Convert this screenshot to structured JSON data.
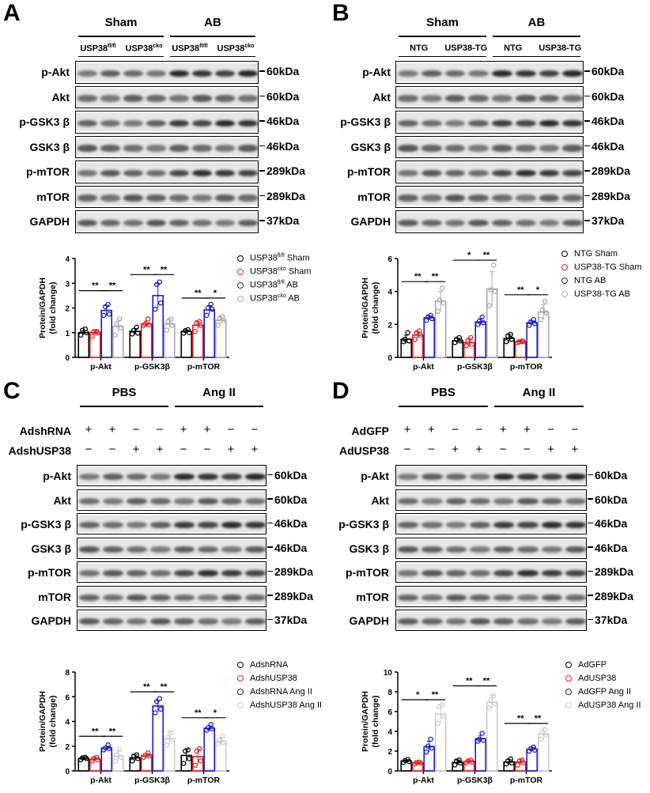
{
  "panels": [
    {
      "letter": "A",
      "groups": [
        "Sham",
        "AB"
      ],
      "lanes": [
        {
          "base": "USP38",
          "sup": "fl/fl"
        },
        {
          "base": "USP38",
          "sup": "cko"
        },
        {
          "base": "USP38",
          "sup": "fl/fl"
        },
        {
          "base": "USP38",
          "sup": "cko"
        }
      ],
      "rows": [
        "p-Akt",
        "Akt",
        "p-GSK3 β",
        "GSK3 β",
        "p-mTOR",
        "mTOR",
        "GAPDH"
      ],
      "kda": [
        "60kDa",
        "60kDa",
        "46kDa",
        "46kDa",
        "289kDa",
        "289kDa",
        "37kDa"
      ]
    },
    {
      "letter": "B",
      "groups": [
        "Sham",
        "AB"
      ],
      "lanes": [
        {
          "base": "NTG",
          "sup": ""
        },
        {
          "base": "USP38-TG",
          "sup": ""
        },
        {
          "base": "NTG",
          "sup": ""
        },
        {
          "base": "USP38-TG",
          "sup": ""
        }
      ],
      "rows": [
        "p-Akt",
        "Akt",
        "p-GSK3 β",
        "GSK3 β",
        "p-mTOR",
        "mTOR",
        "GAPDH"
      ],
      "kda": [
        "60kDa",
        "60kDa",
        "46kDa",
        "46kDa",
        "289kDa",
        "289kDa",
        "37kDa"
      ]
    },
    {
      "letter": "C",
      "groups": [
        "PBS",
        "Ang II"
      ],
      "treatments": [
        {
          "name": "AdshRNA",
          "signs": [
            "+",
            "+",
            "−",
            "−",
            "+",
            "+",
            "−",
            "−"
          ]
        },
        {
          "name": "AdshUSP38",
          "signs": [
            "−",
            "−",
            "+",
            "+",
            "−",
            "−",
            "+",
            "+"
          ]
        }
      ],
      "rows": [
        "p-Akt",
        "Akt",
        "p-GSK3 β",
        "GSK3 β",
        "p-mTOR",
        "mTOR",
        "GAPDH"
      ],
      "kda": [
        "60kDa",
        "60kDa",
        "46kDa",
        "46kDa",
        "289kDa",
        "289kDa",
        "37kDa"
      ]
    },
    {
      "letter": "D",
      "groups": [
        "PBS",
        "Ang II"
      ],
      "treatments": [
        {
          "name": "AdGFP",
          "signs": [
            "+",
            "+",
            "−",
            "−",
            "+",
            "+",
            "−",
            "−"
          ]
        },
        {
          "name": "AdUSP38",
          "signs": [
            "−",
            "−",
            "+",
            "+",
            "−",
            "−",
            "+",
            "+"
          ]
        }
      ],
      "rows": [
        "p-Akt",
        "Akt",
        "p-GSK3 β",
        "GSK3 β",
        "p-mTOR",
        "mTOR",
        "GAPDH"
      ],
      "kda": [
        "60kDa",
        "60kDa",
        "46kDa",
        "46kDa",
        "289kDa",
        "289kDa",
        "37kDa"
      ]
    }
  ],
  "chart_data": [
    {
      "type": "bar",
      "panel": "A",
      "ylabel": [
        "Protein/GAPDH",
        "(fold change)"
      ],
      "ylim": [
        0,
        4
      ],
      "yticks": [
        0,
        1,
        2,
        3,
        4
      ],
      "categories": [
        "p-Akt",
        "p-GSK3β",
        "p-mTOR"
      ],
      "series": [
        {
          "legend": {
            "base": "USP38",
            "sup": "fl/fl",
            "rest": " Sham"
          },
          "color": "#000000",
          "values": [
            1.0,
            1.05,
            1.05
          ],
          "sd": [
            0.08,
            0.12,
            0.06
          ],
          "points": [
            [
              0.9,
              1.0,
              1.1,
              1.15
            ],
            [
              0.95,
              0.98,
              1.1,
              1.22
            ],
            [
              0.98,
              1.0,
              1.08,
              1.12
            ]
          ]
        },
        {
          "legend": {
            "base": "USP38",
            "sup": "cko",
            "rest": " Sham"
          },
          "color": "#e02020",
          "values": [
            1.0,
            1.35,
            1.3
          ],
          "sd": [
            0.08,
            0.12,
            0.15
          ],
          "points": [
            [
              0.85,
              1.0,
              1.05,
              1.05
            ],
            [
              1.3,
              1.32,
              1.35,
              1.55
            ],
            [
              1.05,
              1.3,
              1.4,
              1.45
            ]
          ]
        },
        {
          "legend": {
            "base": "USP38",
            "sup": "fl/fl",
            "rest": " AB"
          },
          "color": "#1a1acc",
          "values": [
            1.9,
            2.5,
            1.92
          ],
          "sd": [
            0.2,
            0.5,
            0.18
          ],
          "points": [
            [
              1.7,
              1.75,
              2.05,
              2.15
            ],
            [
              1.95,
              2.2,
              2.95,
              3.05
            ],
            [
              1.7,
              1.95,
              2.0,
              2.15
            ]
          ]
        },
        {
          "legend": {
            "base": "USP38",
            "sup": "cko",
            "rest": " AB"
          },
          "color": "#aaaaaa",
          "values": [
            1.25,
            1.35,
            1.5
          ],
          "sd": [
            0.25,
            0.2,
            0.15
          ],
          "points": [
            [
              0.9,
              1.2,
              1.35,
              1.55
            ],
            [
              1.1,
              1.3,
              1.45,
              1.55
            ],
            [
              1.3,
              1.5,
              1.6,
              1.65
            ]
          ]
        }
      ],
      "significance": [
        [
          {
            "label": "**",
            "a": 0,
            "b": 2,
            "y": 2.7
          },
          {
            "label": "**",
            "a": 2,
            "b": 3,
            "y": 2.7
          }
        ],
        [
          {
            "label": "**",
            "a": 0,
            "b": 2,
            "y": 3.35
          },
          {
            "label": "**",
            "a": 2,
            "b": 3,
            "y": 3.35
          }
        ],
        [
          {
            "label": "**",
            "a": 0,
            "b": 2,
            "y": 2.4
          },
          {
            "label": "*",
            "a": 2,
            "b": 3,
            "y": 2.4
          }
        ]
      ]
    },
    {
      "type": "bar",
      "panel": "B",
      "ylabel": [
        "Protein/GAPDH",
        "(fold change)"
      ],
      "ylim": [
        0,
        6
      ],
      "yticks": [
        0,
        2,
        4,
        6
      ],
      "categories": [
        "p-Akt",
        "p-GSK3β",
        "p-mTOR"
      ],
      "series": [
        {
          "legend": {
            "base": "NTG Sham",
            "sup": "",
            "rest": ""
          },
          "color": "#000000",
          "values": [
            1.1,
            1.0,
            1.15
          ],
          "sd": [
            0.25,
            0.15,
            0.25
          ],
          "points": [
            [
              0.95,
              1.0,
              1.1,
              1.5
            ],
            [
              0.9,
              1.0,
              1.1,
              1.2
            ],
            [
              0.95,
              1.1,
              1.3,
              1.4
            ]
          ]
        },
        {
          "legend": {
            "base": "USP38-TG Sham",
            "sup": "",
            "rest": ""
          },
          "color": "#e02020",
          "values": [
            1.35,
            0.9,
            0.95
          ],
          "sd": [
            0.2,
            0.25,
            0.08
          ],
          "points": [
            [
              1.1,
              1.35,
              1.5,
              1.6
            ],
            [
              0.7,
              0.8,
              1.0,
              1.2
            ],
            [
              0.9,
              0.95,
              0.95,
              1.0
            ]
          ]
        },
        {
          "legend": {
            "base": "NTG AB",
            "sup": "",
            "rest": ""
          },
          "color": "#1a1acc",
          "values": [
            2.4,
            2.15,
            2.1
          ],
          "sd": [
            0.12,
            0.2,
            0.12
          ],
          "points": [
            [
              2.25,
              2.35,
              2.45,
              2.55
            ],
            [
              2.0,
              2.1,
              2.2,
              2.45
            ],
            [
              1.95,
              2.05,
              2.15,
              2.3
            ]
          ]
        },
        {
          "legend": {
            "base": "USP38-TG AB",
            "sup": "",
            "rest": ""
          },
          "color": "#aaaaaa",
          "values": [
            3.4,
            4.15,
            2.75
          ],
          "sd": [
            0.6,
            1.05,
            0.45
          ],
          "points": [
            [
              2.8,
              3.3,
              3.5,
              4.2
            ],
            [
              3.15,
              4.0,
              4.1,
              5.6
            ],
            [
              2.3,
              2.7,
              2.9,
              3.4
            ]
          ]
        }
      ],
      "significance": [
        [
          {
            "label": "**",
            "a": 0,
            "b": 2,
            "y": 4.6
          },
          {
            "label": "**",
            "a": 2,
            "b": 3,
            "y": 4.6
          }
        ],
        [
          {
            "label": "*",
            "a": 0,
            "b": 2,
            "y": 5.9
          },
          {
            "label": "**",
            "a": 2,
            "b": 3,
            "y": 5.9
          }
        ],
        [
          {
            "label": "**",
            "a": 0,
            "b": 2,
            "y": 3.8
          },
          {
            "label": "*",
            "a": 2,
            "b": 3,
            "y": 3.8
          }
        ]
      ]
    },
    {
      "type": "bar",
      "panel": "C",
      "ylabel": [
        "Protein/GAPDH",
        "(fold change)"
      ],
      "ylim": [
        0,
        8
      ],
      "yticks": [
        0,
        2,
        4,
        6,
        8
      ],
      "categories": [
        "p-Akt",
        "p-GSK3β",
        "p-mTOR"
      ],
      "series": [
        {
          "legend": {
            "base": "AdshRNA",
            "sup": "",
            "rest": ""
          },
          "color": "#000000",
          "values": [
            1.0,
            1.05,
            1.25
          ],
          "sd": [
            0.12,
            0.25,
            0.5
          ],
          "points": [
            [
              0.9,
              1.0,
              1.05,
              1.1
            ],
            [
              0.8,
              1.0,
              1.2,
              1.3
            ],
            [
              0.6,
              1.0,
              1.6,
              1.7
            ]
          ]
        },
        {
          "legend": {
            "base": "AdshUSP38",
            "sup": "",
            "rest": ""
          },
          "color": "#e02020",
          "values": [
            0.95,
            1.25,
            1.15
          ],
          "sd": [
            0.12,
            0.15,
            0.6
          ],
          "points": [
            [
              0.8,
              0.9,
              1.0,
              1.1
            ],
            [
              1.1,
              1.2,
              1.25,
              1.45
            ],
            [
              0.45,
              0.8,
              1.6,
              1.8
            ]
          ]
        },
        {
          "legend": {
            "base": "AdshRNA Ang II",
            "sup": "",
            "rest": ""
          },
          "color": "#1a1acc",
          "values": [
            1.85,
            5.25,
            3.45
          ],
          "sd": [
            0.15,
            0.45,
            0.2
          ],
          "points": [
            [
              1.7,
              1.8,
              1.85,
              2.1
            ],
            [
              4.7,
              5.0,
              5.6,
              5.85
            ],
            [
              3.3,
              3.4,
              3.5,
              3.75
            ]
          ]
        },
        {
          "legend": {
            "base": "AdshUSP38 Ang II",
            "sup": "",
            "rest": ""
          },
          "color": "#cccccc",
          "values": [
            1.2,
            2.6,
            2.4
          ],
          "sd": [
            0.45,
            0.6,
            0.3
          ],
          "points": [
            [
              0.8,
              1.1,
              1.3,
              1.7
            ],
            [
              2.1,
              2.5,
              2.7,
              3.1
            ],
            [
              2.2,
              2.3,
              2.5,
              2.8
            ]
          ]
        }
      ],
      "significance": [
        [
          {
            "label": "**",
            "a": 0,
            "b": 2,
            "y": 2.8
          },
          {
            "label": "**",
            "a": 2,
            "b": 3,
            "y": 2.8
          }
        ],
        [
          {
            "label": "**",
            "a": 0,
            "b": 2,
            "y": 6.4
          },
          {
            "label": "**",
            "a": 2,
            "b": 3,
            "y": 6.4
          }
        ],
        [
          {
            "label": "**",
            "a": 0,
            "b": 2,
            "y": 4.3
          },
          {
            "label": "*",
            "a": 2,
            "b": 3,
            "y": 4.3
          }
        ]
      ]
    },
    {
      "type": "bar",
      "panel": "D",
      "ylabel": [
        "Protein/GAPDH",
        "(fold change)"
      ],
      "ylim": [
        0,
        10
      ],
      "yticks": [
        0,
        2,
        4,
        6,
        8,
        10
      ],
      "categories": [
        "p-Akt",
        "p-GSK3β",
        "p-mTOR"
      ],
      "series": [
        {
          "legend": {
            "base": "AdGFP",
            "sup": "",
            "rest": ""
          },
          "color": "#000000",
          "values": [
            1.0,
            0.85,
            0.9
          ],
          "sd": [
            0.12,
            0.25,
            0.25
          ],
          "points": [
            [
              0.85,
              0.95,
              1.05,
              1.15
            ],
            [
              0.6,
              0.8,
              1.0,
              1.1
            ],
            [
              0.7,
              0.8,
              1.0,
              1.2
            ]
          ]
        },
        {
          "legend": {
            "base": "AdUSP38",
            "sup": "",
            "rest": ""
          },
          "color": "#e02020",
          "values": [
            0.8,
            0.95,
            0.9
          ],
          "sd": [
            0.1,
            0.15,
            0.25
          ],
          "points": [
            [
              0.7,
              0.8,
              0.85,
              0.9
            ],
            [
              0.8,
              0.9,
              1.0,
              1.1
            ],
            [
              0.6,
              0.8,
              1.0,
              1.1
            ]
          ]
        },
        {
          "legend": {
            "base": "AdGFP Ang II",
            "sup": "",
            "rest": ""
          },
          "color": "#1a1acc",
          "values": [
            2.45,
            3.25,
            2.2
          ],
          "sd": [
            0.55,
            0.35,
            0.2
          ],
          "points": [
            [
              1.9,
              2.3,
              2.5,
              3.2
            ],
            [
              3.0,
              3.1,
              3.2,
              3.8
            ],
            [
              2.0,
              2.1,
              2.25,
              2.4
            ]
          ]
        },
        {
          "legend": {
            "base": "AdUSP38 Ang II",
            "sup": "",
            "rest": ""
          },
          "color": "#cccccc",
          "values": [
            5.75,
            6.95,
            3.7
          ],
          "sd": [
            0.95,
            0.7,
            0.55
          ],
          "points": [
            [
              4.8,
              5.5,
              6.5,
              6.7
            ],
            [
              6.4,
              6.8,
              7.2,
              7.6
            ],
            [
              3.2,
              3.6,
              3.9,
              4.2
            ]
          ]
        }
      ],
      "significance": [
        [
          {
            "label": "*",
            "a": 0,
            "b": 2,
            "y": 7.2
          },
          {
            "label": "**",
            "a": 2,
            "b": 3,
            "y": 7.2
          }
        ],
        [
          {
            "label": "**",
            "a": 0,
            "b": 2,
            "y": 8.6
          },
          {
            "label": "**",
            "a": 2,
            "b": 3,
            "y": 8.6
          }
        ],
        [
          {
            "label": "**",
            "a": 0,
            "b": 2,
            "y": 4.8
          },
          {
            "label": "**",
            "a": 2,
            "b": 3,
            "y": 4.8
          }
        ]
      ]
    }
  ]
}
